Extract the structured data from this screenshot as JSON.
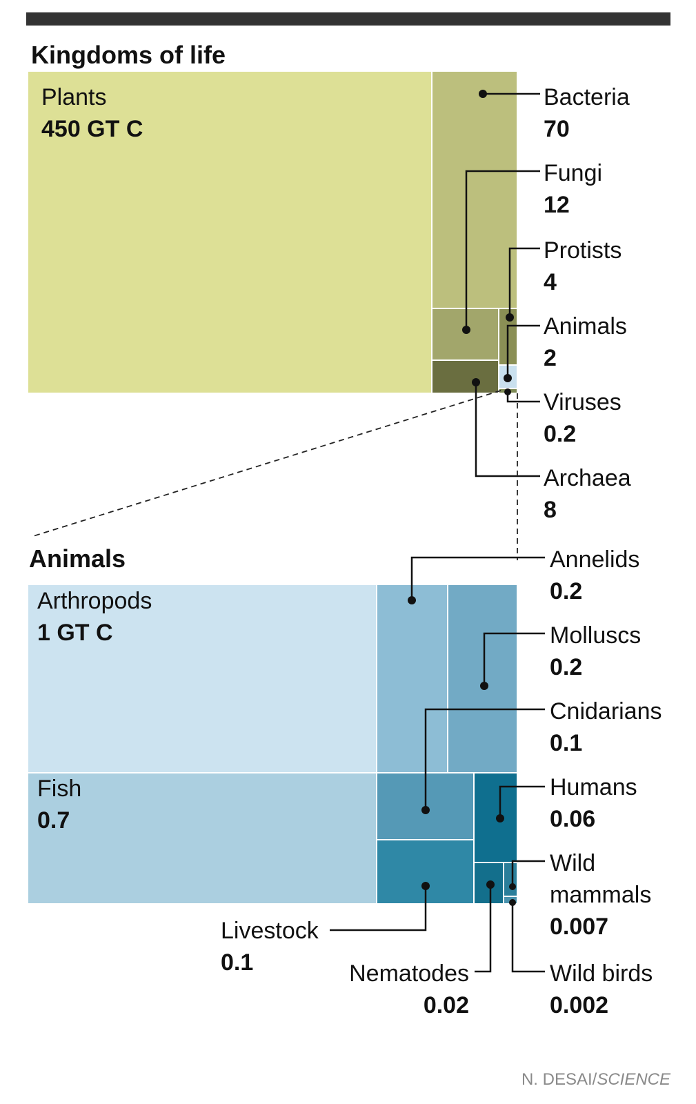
{
  "chart_data": [
    {
      "type": "treemap",
      "title": "Kingdoms of life",
      "unit": "GT C",
      "items": [
        {
          "name": "Plants",
          "value": 450,
          "label": "Plants",
          "value_label": "450 GT C",
          "color": "#dde096"
        },
        {
          "name": "Bacteria",
          "value": 70,
          "label": "Bacteria",
          "value_label": "70",
          "color": "#bcbf7d"
        },
        {
          "name": "Fungi",
          "value": 12,
          "label": "Fungi",
          "value_label": "12",
          "color": "#a2a66b"
        },
        {
          "name": "Protists",
          "value": 4,
          "label": "Protists",
          "value_label": "4",
          "color": "#8a8f55"
        },
        {
          "name": "Animals",
          "value": 2,
          "label": "Animals",
          "value_label": "2",
          "color": "#c9e0ee"
        },
        {
          "name": "Viruses",
          "value": 0.2,
          "label": "Viruses",
          "value_label": "0.2",
          "color": "#7e8a55"
        },
        {
          "name": "Archaea",
          "value": 8,
          "label": "Archaea",
          "value_label": "8",
          "color": "#6a6e40"
        }
      ]
    },
    {
      "type": "treemap",
      "title": "Animals",
      "unit": "GT C",
      "items": [
        {
          "name": "Arthropods",
          "value": 1,
          "label": "Arthropods",
          "value_label": "1 GT C",
          "color": "#cce3f0"
        },
        {
          "name": "Fish",
          "value": 0.7,
          "label": "Fish",
          "value_label": "0.7",
          "color": "#abcfe0"
        },
        {
          "name": "Annelids",
          "value": 0.2,
          "label": "Annelids",
          "value_label": "0.2",
          "color": "#8dbdd5"
        },
        {
          "name": "Molluscs",
          "value": 0.2,
          "label": "Molluscs",
          "value_label": "0.2",
          "color": "#72aac5"
        },
        {
          "name": "Cnidarians",
          "value": 0.1,
          "label": "Cnidarians",
          "value_label": "0.1",
          "color": "#5599b6"
        },
        {
          "name": "Humans",
          "value": 0.06,
          "label": "Humans",
          "value_label": "0.06",
          "color": "#0f6f8f"
        },
        {
          "name": "Livestock",
          "value": 0.1,
          "label": "Livestock",
          "value_label": "0.1",
          "color": "#2f88a6"
        },
        {
          "name": "Nematodes",
          "value": 0.02,
          "label": "Nematodes",
          "value_label": "0.02",
          "color": "#136f8c"
        },
        {
          "name": "Wild mammals",
          "value": 0.007,
          "label_lines": [
            "Wild",
            "mammals"
          ],
          "value_label": "0.007",
          "color": "#2a7e9a"
        },
        {
          "name": "Wild birds",
          "value": 0.002,
          "label": "Wild birds",
          "value_label": "0.002",
          "color": "#4a92ad"
        }
      ]
    }
  ],
  "credit": {
    "author": "N. DESAI/",
    "publication": "SCIENCE"
  },
  "colors": {
    "top_bar": "#333333",
    "leader": "#111111",
    "background": "#ffffff"
  }
}
